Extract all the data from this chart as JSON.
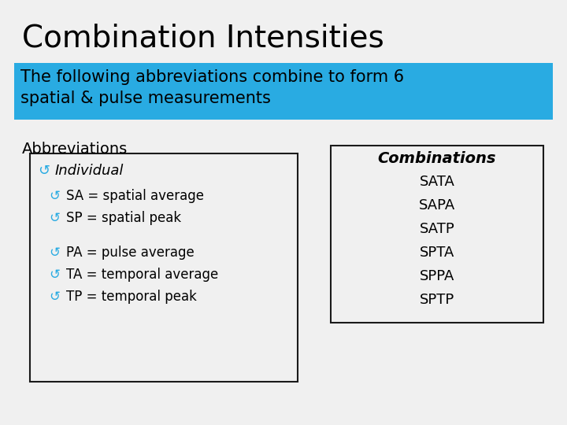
{
  "title": "Combination Intensities",
  "subtitle_line1": "The following abbreviations combine to form 6",
  "subtitle_line2": "spatial & pulse measurements",
  "subtitle_bg": "#29ABE2",
  "bg_color": "#F0F0F0",
  "title_fontsize": 28,
  "subtitle_fontsize": 15,
  "abbrev_header": "Abbreviations",
  "combo_header": "Combinations",
  "combo_lines": [
    "SATA",
    "SAPA",
    "SATP",
    "SPTA",
    "SPPA",
    "SPTP"
  ],
  "box_edge_color": "#1a1a1a",
  "text_color": "#000000",
  "cyan_color": "#29ABE2",
  "white": "#FFFFFF"
}
